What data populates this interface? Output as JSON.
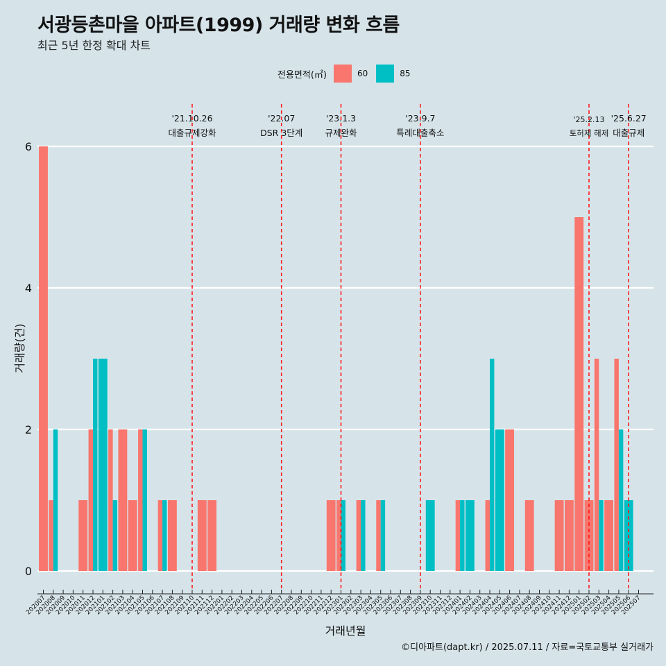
{
  "title": "서광등촌마을 아파트(1999) 거래량 변화 흐름",
  "subtitle": "최근 5년 한정 확대 차트",
  "caption": "©디아파트(dapt.kr) / 2025.07.11 / 자료=국토교통부 실거래가",
  "legend": {
    "title": "전용면적(㎡)",
    "items": [
      {
        "label": "60",
        "color": "#f8766d"
      },
      {
        "label": "85",
        "color": "#00bfc4"
      }
    ]
  },
  "chart_data": {
    "type": "bar",
    "xlabel": "거래년월",
    "ylabel": "거래량(건)",
    "ylim": [
      0,
      6
    ],
    "yticks": [
      0,
      2,
      4,
      6
    ],
    "grid": true,
    "legend_position": "top",
    "categories": [
      "202007",
      "202008",
      "202009",
      "202010",
      "202011",
      "202012",
      "202101",
      "202102",
      "202103",
      "202104",
      "202105",
      "202106",
      "202107",
      "202108",
      "202109",
      "202110",
      "202111",
      "202112",
      "202201",
      "202202",
      "202203",
      "202204",
      "202205",
      "202206",
      "202207",
      "202208",
      "202209",
      "202210",
      "202211",
      "202212",
      "202301",
      "202302",
      "202303",
      "202304",
      "202305",
      "202306",
      "202307",
      "202308",
      "202309",
      "202310",
      "202311",
      "202312",
      "202401",
      "202402",
      "202403",
      "202404",
      "202405",
      "202406",
      "202407",
      "202408",
      "202409",
      "202410",
      "202411",
      "202412",
      "202501",
      "202502",
      "202503",
      "202504",
      "202505",
      "202506",
      "202507"
    ],
    "series": [
      {
        "name": "60",
        "color": "#f8766d",
        "values": [
          6,
          1,
          0,
          0,
          1,
          2,
          0,
          2,
          2,
          1,
          2,
          0,
          1,
          1,
          0,
          0,
          1,
          1,
          0,
          0,
          0,
          0,
          0,
          0,
          0,
          0,
          0,
          0,
          0,
          1,
          1,
          0,
          1,
          0,
          1,
          0,
          0,
          0,
          0,
          0,
          0,
          0,
          1,
          0,
          0,
          1,
          0,
          2,
          0,
          1,
          0,
          0,
          1,
          1,
          5,
          1,
          3,
          1,
          3,
          0,
          0
        ]
      },
      {
        "name": "85",
        "color": "#00bfc4",
        "values": [
          0,
          2,
          0,
          0,
          0,
          3,
          3,
          1,
          0,
          0,
          2,
          0,
          1,
          0,
          0,
          0,
          0,
          0,
          0,
          0,
          0,
          0,
          0,
          0,
          0,
          0,
          0,
          0,
          0,
          0,
          1,
          0,
          1,
          0,
          1,
          0,
          0,
          0,
          0,
          1,
          0,
          0,
          1,
          1,
          0,
          3,
          2,
          0,
          0,
          0,
          0,
          0,
          0,
          0,
          0,
          0,
          1,
          0,
          2,
          1,
          0
        ]
      }
    ],
    "events": [
      {
        "date": "'21.10.26",
        "label": "대출규제강화",
        "category": "202110"
      },
      {
        "date": "'22.07",
        "label": "DSR 3단계",
        "category": "202207"
      },
      {
        "date": "'23.1.3",
        "label": "규제완화",
        "category": "202301"
      },
      {
        "date": "'23.9.7",
        "label": "특례대출축소",
        "category": "202309"
      },
      {
        "date": "'25.2.13",
        "label": "토허제 해제",
        "category": "202502"
      },
      {
        "date": "'25.6.27",
        "label": "대출규제",
        "category": "202506"
      }
    ]
  }
}
